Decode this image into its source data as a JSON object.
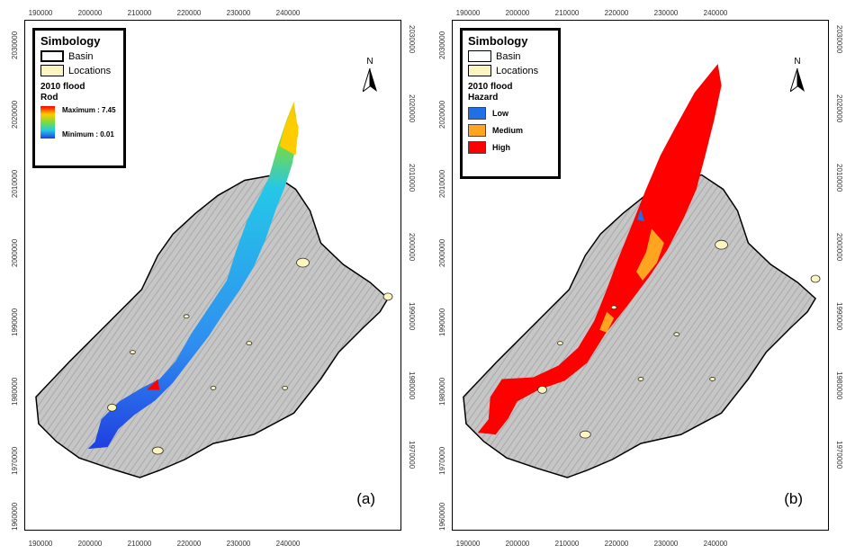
{
  "axes": {
    "x_ticks": [
      "190000",
      "200000",
      "210000",
      "220000",
      "230000",
      "240000"
    ],
    "y_ticks": [
      "2030000",
      "2020000",
      "2010000",
      "2000000",
      "1990000",
      "1980000",
      "1970000",
      "1960000"
    ]
  },
  "panel_a": {
    "legend": {
      "title": "Simbology",
      "basin_label": "Basin",
      "locations_label": "Locations",
      "layer_title": "2010 flood",
      "layer_field": "Rod",
      "max_label": "Maximum : 7.45",
      "min_label": "Minimum : 0.01"
    },
    "north_label": "N",
    "panel_label": "(a)"
  },
  "panel_b": {
    "legend": {
      "title": "Simbology",
      "basin_label": "Basin",
      "locations_label": "Locations",
      "layer_title": "2010 flood",
      "layer_field": "Hazard",
      "classes": [
        {
          "label": "Low",
          "color": "#1f6fe6"
        },
        {
          "label": "Medium",
          "color": "#ffa51f"
        },
        {
          "label": "High",
          "color": "#ff0000"
        }
      ]
    },
    "north_label": "N",
    "panel_label": "(b)"
  },
  "colors": {
    "basin_fill": "#c9c9c9",
    "locations_fill": "#fdf5c0",
    "depth_ramp": [
      "#ff0000",
      "#ffcc00",
      "#7bdc3b",
      "#25c7e8",
      "#1f3fe0"
    ]
  }
}
